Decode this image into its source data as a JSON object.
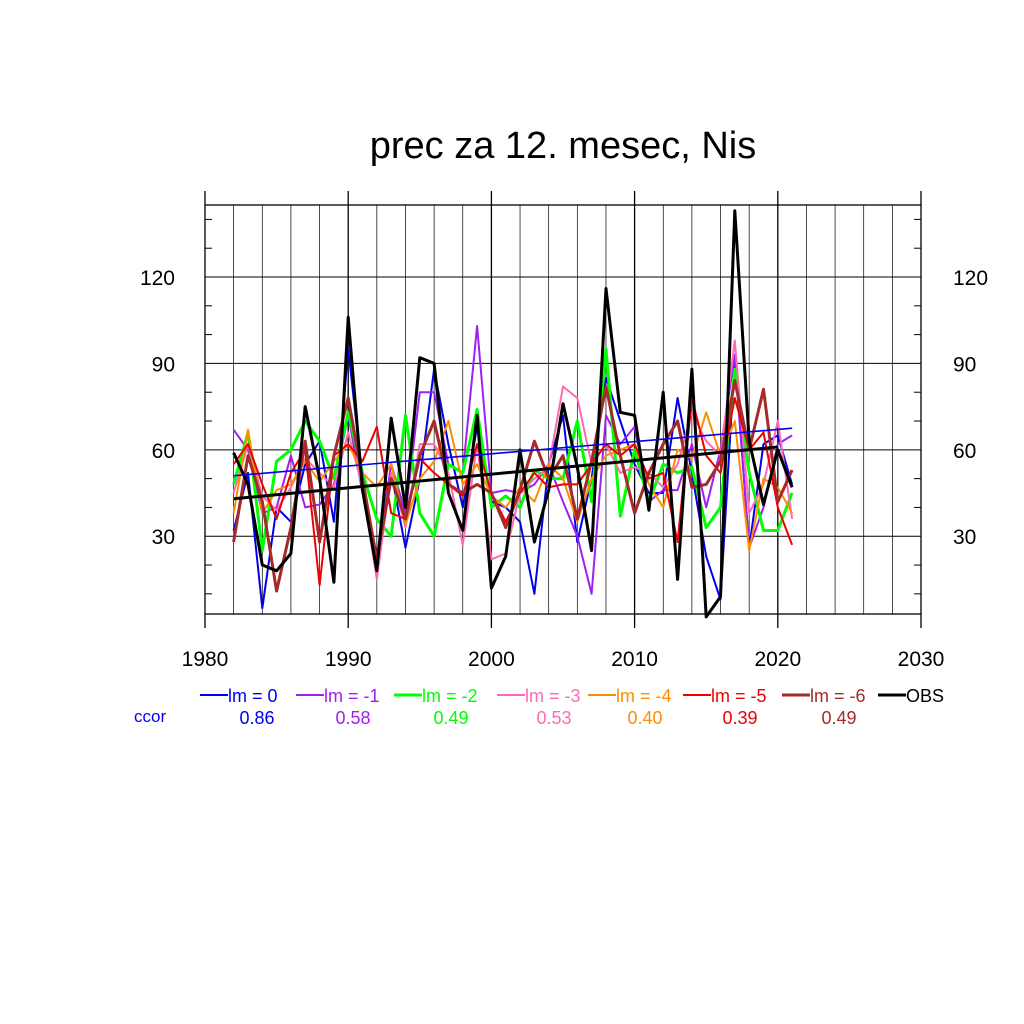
{
  "chart_data": {
    "type": "line",
    "title": "prec za 12. mesec, Nis",
    "xlabel": "",
    "ylabel": "",
    "xlim": [
      1980,
      2030
    ],
    "ylim": [
      3,
      145
    ],
    "x_ticks": [
      1980,
      1990,
      2000,
      2010,
      2020,
      2030
    ],
    "y_ticks": [
      30,
      60,
      90,
      120
    ],
    "grid": true,
    "legend_position": "bottom",
    "ccor_label": "ccor",
    "years": [
      1982,
      1983,
      1984,
      1985,
      1986,
      1987,
      1988,
      1989,
      1990,
      1991,
      1992,
      1993,
      1994,
      1995,
      1996,
      1997,
      1998,
      1999,
      2000,
      2001,
      2002,
      2003,
      2004,
      2005,
      2006,
      2007,
      2008,
      2009,
      2010,
      2011,
      2012,
      2013,
      2014,
      2015,
      2016,
      2017,
      2018,
      2019,
      2020,
      2021
    ],
    "series": [
      {
        "name": "lm = 0",
        "color": "#0000ee",
        "width": 2,
        "ccor": "0.86",
        "values": [
          32,
          52,
          5,
          40,
          35,
          55,
          63,
          35,
          95,
          50,
          18,
          52,
          26,
          50,
          88,
          62,
          40,
          68,
          42,
          40,
          35,
          10,
          55,
          72,
          28,
          50,
          85,
          70,
          55,
          45,
          45,
          78,
          52,
          23,
          8,
          92,
          26,
          62,
          65,
          48
        ],
        "trend": [
          51,
          67.5
        ]
      },
      {
        "name": "lm = -1",
        "color": "#a020f0",
        "width": 2,
        "ccor": "0.58",
        "values": [
          67,
          60,
          38,
          40,
          58,
          40,
          41,
          48,
          72,
          45,
          22,
          55,
          38,
          80,
          80,
          55,
          52,
          103,
          45,
          46,
          45,
          48,
          55,
          42,
          30,
          10,
          72,
          62,
          68,
          42,
          46,
          46,
          62,
          40,
          60,
          93,
          26,
          40,
          62,
          65
        ],
        "trend": null
      },
      {
        "name": "lm = -2",
        "color": "#00ff00",
        "width": 3,
        "ccor": "0.49",
        "values": [
          48,
          66,
          25,
          56,
          60,
          70,
          63,
          50,
          73,
          52,
          36,
          30,
          72,
          38,
          30,
          55,
          52,
          74,
          40,
          44,
          40,
          53,
          50,
          50,
          70,
          42,
          95,
          37,
          60,
          42,
          55,
          52,
          54,
          33,
          40,
          88,
          52,
          32,
          32,
          45
        ],
        "trend": null
      },
      {
        "name": "lm = -3",
        "color": "#ff69b4",
        "width": 2,
        "ccor": "0.53",
        "values": [
          45,
          62,
          44,
          39,
          47,
          57,
          52,
          47,
          66,
          47,
          15,
          52,
          33,
          62,
          62,
          52,
          27,
          62,
          22,
          24,
          45,
          50,
          54,
          82,
          78,
          55,
          62,
          52,
          54,
          52,
          47,
          55,
          73,
          63,
          58,
          98,
          38,
          48,
          70,
          36
        ],
        "trend": null
      },
      {
        "name": "lm = -4",
        "color": "#ff8c00",
        "width": 2,
        "ccor": "0.40",
        "values": [
          38,
          67,
          38,
          46,
          48,
          56,
          49,
          56,
          62,
          52,
          47,
          55,
          34,
          50,
          56,
          70,
          48,
          55,
          44,
          40,
          47,
          42,
          55,
          50,
          35,
          50,
          58,
          60,
          62,
          48,
          40,
          60,
          57,
          73,
          58,
          70,
          25,
          50,
          47,
          38
        ],
        "trend": null
      },
      {
        "name": "lm = -5",
        "color": "#ee0000",
        "width": 2,
        "ccor": "0.39",
        "values": [
          55,
          62,
          48,
          36,
          52,
          60,
          13,
          58,
          62,
          56,
          68,
          38,
          36,
          57,
          52,
          48,
          44,
          62,
          45,
          35,
          45,
          52,
          47,
          48,
          48,
          55,
          62,
          58,
          62,
          50,
          52,
          28,
          78,
          58,
          52,
          78,
          60,
          66,
          40,
          27
        ],
        "trend": null
      },
      {
        "name": "lm = -6",
        "color": "#a52a2a",
        "width": 3,
        "ccor": "0.49",
        "values": [
          28,
          58,
          42,
          11,
          33,
          63,
          28,
          58,
          78,
          50,
          22,
          50,
          36,
          58,
          70,
          48,
          45,
          48,
          45,
          33,
          46,
          63,
          50,
          58,
          36,
          56,
          82,
          58,
          38,
          52,
          62,
          70,
          47,
          48,
          56,
          84,
          60,
          81,
          42,
          53
        ],
        "trend": null
      },
      {
        "name": "OBS",
        "color": "#000000",
        "width": 3,
        "ccor": null,
        "values": [
          59,
          48,
          20,
          18,
          24,
          75,
          50,
          14,
          106,
          46,
          18,
          71,
          40,
          92,
          90,
          45,
          32,
          72,
          12,
          23,
          60,
          28,
          46,
          76,
          54,
          25,
          116,
          73,
          72,
          39,
          80,
          15,
          88,
          2,
          9,
          143,
          63,
          41,
          60,
          47
        ],
        "trend": [
          43,
          61
        ]
      }
    ]
  }
}
